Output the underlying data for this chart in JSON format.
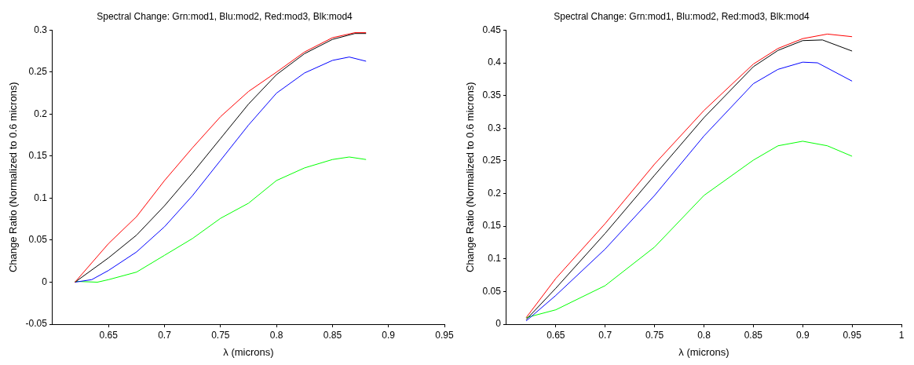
{
  "chart_data": [
    {
      "type": "line",
      "title": "Spectral Change: Grn:mod1, Blu:mod2, Red:mod3, Blk:mod4",
      "xlabel": "λ (microns)",
      "ylabel": "Change Ratio (Normalized to 0.6 microns)",
      "xlim": [
        0.6,
        0.95
      ],
      "xticks": [
        0.65,
        0.7,
        0.75,
        0.8,
        0.85,
        0.9,
        0.95
      ],
      "ylim": [
        -0.05,
        0.3
      ],
      "yticks": [
        -0.05,
        0,
        0.05,
        0.1,
        0.15,
        0.2,
        0.25,
        0.3
      ],
      "legend": false,
      "grid": false,
      "marker": "none",
      "series": [
        {
          "color": "#ff0000",
          "x": [
            0.62,
            0.65,
            0.675,
            0.7,
            0.725,
            0.75,
            0.775,
            0.8,
            0.825,
            0.85,
            0.87,
            0.88
          ],
          "values": [
            0,
            0.046,
            0.078,
            0.121,
            0.16,
            0.197,
            0.227,
            0.25,
            0.274,
            0.291,
            0.297,
            0.297
          ]
        },
        {
          "color": "#000000",
          "x": [
            0.62,
            0.65,
            0.675,
            0.7,
            0.725,
            0.75,
            0.775,
            0.8,
            0.825,
            0.85,
            0.87,
            0.88
          ],
          "values": [
            0,
            0.029,
            0.056,
            0.091,
            0.13,
            0.171,
            0.212,
            0.247,
            0.272,
            0.289,
            0.296,
            0.296
          ]
        },
        {
          "color": "#0000ff",
          "x": [
            0.62,
            0.635,
            0.65,
            0.675,
            0.7,
            0.725,
            0.75,
            0.775,
            0.8,
            0.825,
            0.85,
            0.865,
            0.88
          ],
          "values": [
            0,
            0.003,
            0.014,
            0.036,
            0.066,
            0.103,
            0.145,
            0.187,
            0.225,
            0.249,
            0.264,
            0.268,
            0.263
          ]
        },
        {
          "color": "#00ff00",
          "x": [
            0.62,
            0.64,
            0.65,
            0.675,
            0.7,
            0.725,
            0.75,
            0.775,
            0.8,
            0.825,
            0.85,
            0.865,
            0.88
          ],
          "values": [
            0.001,
            0,
            0.003,
            0.012,
            0.032,
            0.052,
            0.076,
            0.094,
            0.121,
            0.136,
            0.146,
            0.149,
            0.146
          ]
        }
      ]
    },
    {
      "type": "line",
      "title": "Spectral Change: Grn:mod1, Blu:mod2, Red:mod3, Blk:mod4",
      "xlabel": "λ (microns)",
      "ylabel": "Change Ratio (Normalized to 0.6 microns)",
      "xlim": [
        0.6,
        1
      ],
      "xticks": [
        0.65,
        0.7,
        0.75,
        0.8,
        0.85,
        0.9,
        0.95,
        1
      ],
      "ylim": [
        0,
        0.45
      ],
      "yticks": [
        0,
        0.05,
        0.1,
        0.15,
        0.2,
        0.25,
        0.3,
        0.35,
        0.4,
        0.45
      ],
      "legend": false,
      "grid": false,
      "marker": "none",
      "series": [
        {
          "color": "#ff0000",
          "x": [
            0.62,
            0.65,
            0.7,
            0.75,
            0.8,
            0.85,
            0.875,
            0.9,
            0.925,
            0.95
          ],
          "values": [
            0.01,
            0.07,
            0.154,
            0.245,
            0.327,
            0.398,
            0.422,
            0.437,
            0.444,
            0.44
          ]
        },
        {
          "color": "#000000",
          "x": [
            0.62,
            0.65,
            0.7,
            0.75,
            0.8,
            0.85,
            0.875,
            0.9,
            0.92,
            0.95
          ],
          "values": [
            0.007,
            0.055,
            0.139,
            0.228,
            0.316,
            0.394,
            0.419,
            0.434,
            0.435,
            0.418
          ]
        },
        {
          "color": "#0000ff",
          "x": [
            0.62,
            0.65,
            0.7,
            0.75,
            0.8,
            0.85,
            0.875,
            0.9,
            0.915,
            0.95
          ],
          "values": [
            0.005,
            0.044,
            0.115,
            0.197,
            0.288,
            0.368,
            0.39,
            0.401,
            0.4,
            0.372
          ]
        },
        {
          "color": "#00ff00",
          "x": [
            0.62,
            0.65,
            0.7,
            0.75,
            0.8,
            0.85,
            0.875,
            0.9,
            0.925,
            0.95
          ],
          "values": [
            0.01,
            0.022,
            0.059,
            0.118,
            0.197,
            0.251,
            0.273,
            0.28,
            0.273,
            0.257
          ]
        }
      ]
    }
  ]
}
